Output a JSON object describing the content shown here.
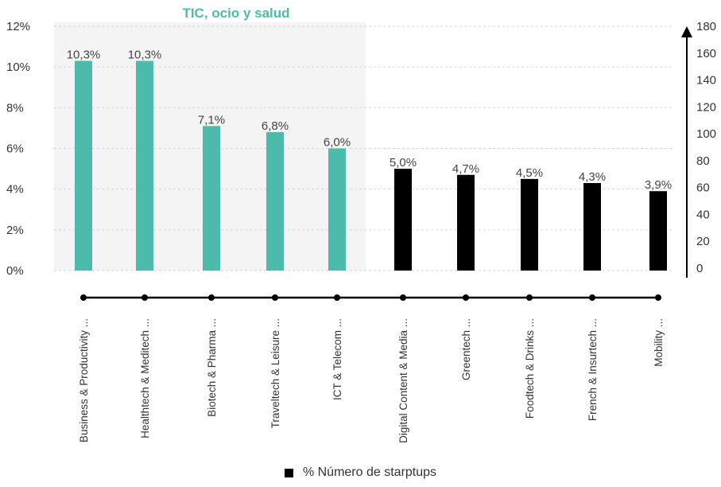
{
  "chart_data": {
    "type": "bar",
    "highlight": {
      "title": "TIC, ocio y salud",
      "color": "#4dbbac",
      "background": "#f4f4f4",
      "count": 5
    },
    "categories": [
      "Business & Productivity ...",
      "Healthtech & Meditech ...",
      "Biotech & Pharma ...",
      "Traveltech & Leisure ...",
      "ICT & Telecom ...",
      "Digital Content & Media ...",
      "Greentech ...",
      "Foodtech & Drinks ...",
      "French & Insurtech ...",
      "Mobility ..."
    ],
    "series": [
      {
        "name": "%",
        "values": [
          10.3,
          10.3,
          7.1,
          6.8,
          6.0,
          5.0,
          4.7,
          4.5,
          4.3,
          3.9
        ],
        "labels": [
          "10,3%",
          "10,3%",
          "7,1%",
          "6,8%",
          "6,0%",
          "5,0%",
          "4,7%",
          "4,5%",
          "4,3%",
          "3,9%"
        ]
      }
    ],
    "y_left": {
      "min": 0,
      "max": 12,
      "ticks": [
        "0%",
        "2%",
        "4%",
        "6%",
        "8%",
        "10%",
        "12%"
      ]
    },
    "y_right": {
      "min": 0,
      "max": 180,
      "ticks": [
        "0",
        "20",
        "40",
        "60",
        "80",
        "100",
        "120",
        "140",
        "160",
        "180"
      ]
    },
    "grid": true,
    "legend": {
      "position": "bottom",
      "text": "%   Número de starptups"
    },
    "colors": {
      "default": "#000000",
      "highlight": "#4dbbac"
    }
  }
}
